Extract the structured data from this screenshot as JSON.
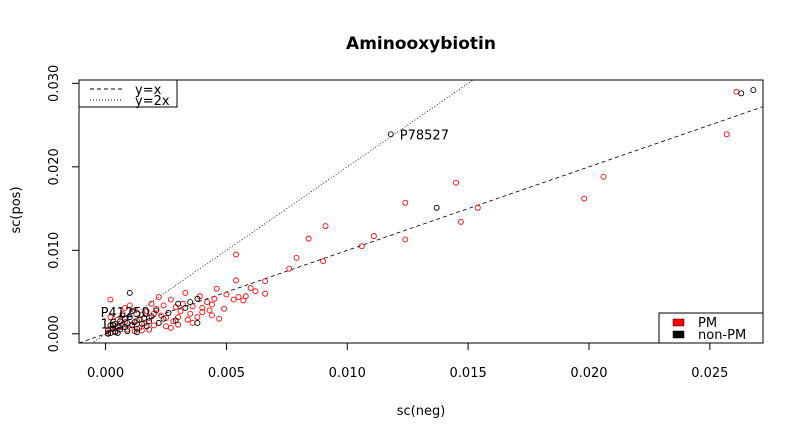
{
  "chart_data": {
    "type": "scatter",
    "title": "Aminooxybiotin",
    "xlabel": "sc(neg)",
    "ylabel": "sc(pos)",
    "xlim": [
      -0.0011,
      0.0272
    ],
    "ylim": [
      -0.0011,
      0.0304
    ],
    "x_ticks": [
      {
        "value": 0.0,
        "label": "0.000"
      },
      {
        "value": 0.005,
        "label": "0.005"
      },
      {
        "value": 0.01,
        "label": "0.010"
      },
      {
        "value": 0.015,
        "label": "0.015"
      },
      {
        "value": 0.02,
        "label": "0.020"
      },
      {
        "value": 0.025,
        "label": "0.025"
      }
    ],
    "y_ticks": [
      {
        "value": 0.0,
        "label": "0.000"
      },
      {
        "value": 0.01,
        "label": "0.010"
      },
      {
        "value": 0.02,
        "label": "0.020"
      },
      {
        "value": 0.03,
        "label": "0.030"
      }
    ],
    "reference_lines": [
      {
        "label": "y=x",
        "slope": 1,
        "style": "dashed"
      },
      {
        "label": "y=2x",
        "slope": 2,
        "style": "dotted"
      }
    ],
    "line_legend": {
      "position": "top-left",
      "entries": [
        "y=x",
        "y=2x"
      ]
    },
    "group_legend": {
      "position": "bottom-right",
      "entries": [
        {
          "label": "PM",
          "color": "#ff0000"
        },
        {
          "label": "non-PM",
          "color": "#000000"
        }
      ]
    },
    "series": [
      {
        "group": "PM",
        "color": "#ff0000",
        "points": [
          [
            0.0261,
            0.029
          ],
          [
            0.0257,
            0.0239
          ],
          [
            0.0206,
            0.0188
          ],
          [
            0.0198,
            0.0162
          ],
          [
            0.0154,
            0.0151
          ],
          [
            0.0147,
            0.0134
          ],
          [
            0.0145,
            0.0181
          ],
          [
            0.0124,
            0.0157
          ],
          [
            0.0124,
            0.0113
          ],
          [
            0.0111,
            0.0117
          ],
          [
            0.0106,
            0.0105
          ],
          [
            0.0091,
            0.0129
          ],
          [
            0.009,
            0.0087
          ],
          [
            0.0084,
            0.0114
          ],
          [
            0.0079,
            0.0091
          ],
          [
            0.0076,
            0.0078
          ],
          [
            0.0066,
            0.0063
          ],
          [
            0.0066,
            0.0048
          ],
          [
            0.0062,
            0.0051
          ],
          [
            0.006,
            0.0055
          ],
          [
            0.0058,
            0.0045
          ],
          [
            0.0057,
            0.004
          ],
          [
            0.0055,
            0.0044
          ],
          [
            0.0054,
            0.0095
          ],
          [
            0.0054,
            0.0064
          ],
          [
            0.0053,
            0.0041
          ],
          [
            0.005,
            0.0047
          ],
          [
            0.0049,
            0.003
          ],
          [
            0.0047,
            0.0018
          ],
          [
            0.0046,
            0.0054
          ],
          [
            0.0045,
            0.0042
          ],
          [
            0.0044,
            0.0035
          ],
          [
            0.0043,
            0.0028
          ],
          [
            0.0042,
            0.0038
          ],
          [
            0.004,
            0.0026
          ],
          [
            0.0039,
            0.0045
          ],
          [
            0.0038,
            0.002
          ],
          [
            0.0036,
            0.0033
          ],
          [
            0.0035,
            0.0024
          ],
          [
            0.0034,
            0.0017
          ],
          [
            0.0033,
            0.0049
          ],
          [
            0.0032,
            0.0036
          ],
          [
            0.0031,
            0.0027
          ],
          [
            0.003,
            0.002
          ],
          [
            0.0029,
            0.0032
          ],
          [
            0.0028,
            0.0015
          ],
          [
            0.0027,
            0.0041
          ],
          [
            0.0026,
            0.0025
          ],
          [
            0.0025,
            0.0019
          ],
          [
            0.0024,
            0.0034
          ],
          [
            0.0023,
            0.0022
          ],
          [
            0.0022,
            0.0013
          ],
          [
            0.0021,
            0.003
          ],
          [
            0.002,
            0.0024
          ],
          [
            0.002,
            0.001
          ],
          [
            0.0019,
            0.0036
          ],
          [
            0.0018,
            0.0019
          ],
          [
            0.0017,
            0.0027
          ],
          [
            0.0016,
            0.0012
          ],
          [
            0.0015,
            0.0023
          ],
          [
            0.0014,
            0.0007
          ],
          [
            0.0013,
            0.0016
          ],
          [
            0.0012,
            0.0028
          ],
          [
            0.0011,
            0.0011
          ],
          [
            0.001,
            0.002
          ],
          [
            0.0009,
            0.0005
          ],
          [
            0.0008,
            0.0014
          ],
          [
            0.0007,
            0.0024
          ],
          [
            0.0006,
            0.0008
          ],
          [
            0.0005,
            0.0017
          ],
          [
            0.0004,
            0.0003
          ],
          [
            0.0003,
            0.0011
          ],
          [
            0.0002,
            0.0041
          ],
          [
            0.0002,
            0.0006
          ],
          [
            0.0001,
            0.0001
          ],
          [
            0.0002,
            0.002
          ],
          [
            0.0018,
            0.0005
          ],
          [
            0.0015,
            0.0004
          ],
          [
            0.0012,
            0.0003
          ],
          [
            0.0025,
            0.0009
          ],
          [
            0.003,
            0.0011
          ],
          [
            0.0036,
            0.0013
          ],
          [
            0.0022,
            0.0044
          ],
          [
            0.0008,
            0.0031
          ],
          [
            0.004,
            0.0031
          ],
          [
            0.0044,
            0.0022
          ],
          [
            0.0027,
            0.0007
          ],
          [
            0.001,
            0.0034
          ]
        ]
      },
      {
        "group": "non-PM",
        "color": "#000000",
        "points": [
          [
            0.0268,
            0.0292
          ],
          [
            0.0263,
            0.0288
          ],
          [
            0.0137,
            0.0151
          ],
          [
            0.0118,
            0.0239
          ],
          [
            0.0038,
            0.0042
          ],
          [
            0.0038,
            0.0013
          ],
          [
            0.0035,
            0.0038
          ],
          [
            0.0033,
            0.0031
          ],
          [
            0.003,
            0.0036
          ],
          [
            0.0029,
            0.0016
          ],
          [
            0.0026,
            0.0025
          ],
          [
            0.0024,
            0.0018
          ],
          [
            0.0022,
            0.0013
          ],
          [
            0.0021,
            0.0028
          ],
          [
            0.0019,
            0.0021
          ],
          [
            0.0018,
            0.0015
          ],
          [
            0.0017,
            0.0009
          ],
          [
            0.0016,
            0.0019
          ],
          [
            0.0015,
            0.0012
          ],
          [
            0.0014,
            0.0017
          ],
          [
            0.0013,
            0.0006
          ],
          [
            0.0012,
            0.0014
          ],
          [
            0.0011,
            0.001
          ],
          [
            0.001,
            0.0049
          ],
          [
            0.001,
            0.002
          ],
          [
            0.0009,
            0.0013
          ],
          [
            0.0008,
            0.0008
          ],
          [
            0.0008,
            0.0018
          ],
          [
            0.0007,
            0.0011
          ],
          [
            0.0006,
            0.0005
          ],
          [
            0.0006,
            0.0015
          ],
          [
            0.0005,
            0.0009
          ],
          [
            0.0004,
            0.0002
          ],
          [
            0.0004,
            0.0012
          ],
          [
            0.0003,
            0.0006
          ],
          [
            0.0002,
            0.0001
          ],
          [
            0.0002,
            0.001
          ],
          [
            0.0001,
            0.0004
          ],
          [
            0.0001,
            0.0
          ],
          [
            0.0005,
            0.0001
          ],
          [
            0.0009,
            0.0003
          ],
          [
            0.0013,
            0.0002
          ],
          [
            0.0007,
            0.0022
          ],
          [
            0.0011,
            0.0027
          ]
        ]
      }
    ],
    "annotations": [
      {
        "text": "P78527",
        "x": 0.0118,
        "y": 0.0239
      },
      {
        "text": "P41250",
        "x": 0.0,
        "y": 0.0025
      },
      {
        "text": "16",
        "x": 0.0,
        "y": 0.0011
      }
    ]
  }
}
